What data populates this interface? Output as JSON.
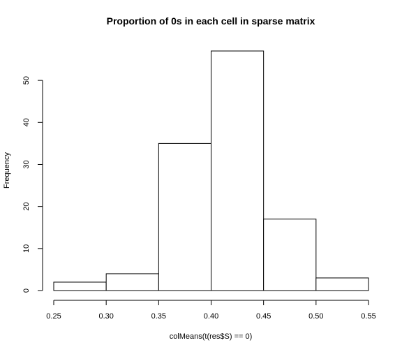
{
  "chart_data": {
    "type": "bar",
    "title": "Proportion of 0s in each cell in sparse matrix",
    "xlabel": "colMeans(t(res$S) == 0)",
    "ylabel": "Frequency",
    "bins": [
      {
        "start": 0.25,
        "end": 0.3,
        "value": 2
      },
      {
        "start": 0.3,
        "end": 0.35,
        "value": 4
      },
      {
        "start": 0.35,
        "end": 0.4,
        "value": 35
      },
      {
        "start": 0.4,
        "end": 0.45,
        "value": 57
      },
      {
        "start": 0.45,
        "end": 0.5,
        "value": 17
      },
      {
        "start": 0.5,
        "end": 0.55,
        "value": 3
      }
    ],
    "x_ticks": [
      "0.25",
      "0.30",
      "0.35",
      "0.40",
      "0.45",
      "0.50",
      "0.55"
    ],
    "y_ticks": [
      "0",
      "10",
      "20",
      "30",
      "40",
      "50"
    ],
    "xlim": [
      0.25,
      0.55
    ],
    "ylim": [
      0,
      57
    ],
    "grid": false,
    "colors": {
      "bar_fill": "#ffffff",
      "bar_stroke": "#000000",
      "text": "#000000"
    }
  }
}
